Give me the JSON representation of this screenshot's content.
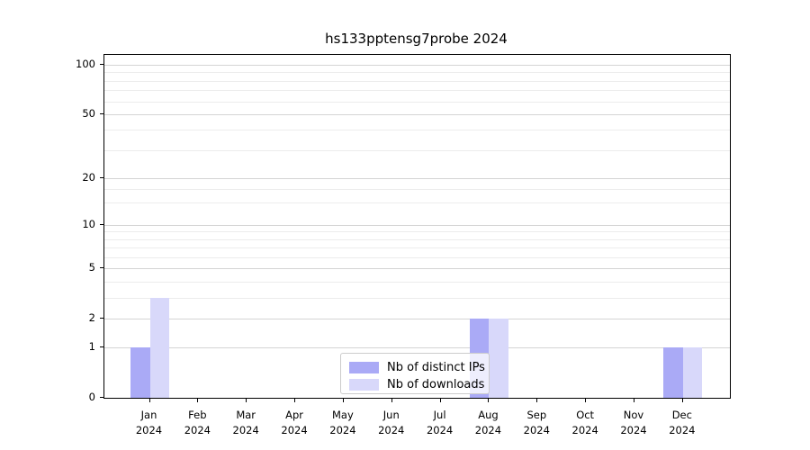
{
  "chart_data": {
    "type": "bar",
    "title": "hs133pptensg7probe 2024",
    "x_categories": [
      "Jan 2024",
      "Feb 2024",
      "Mar 2024",
      "Apr 2024",
      "May 2024",
      "Jun 2024",
      "Jul 2024",
      "Aug 2024",
      "Sep 2024",
      "Oct 2024",
      "Nov 2024",
      "Dec 2024"
    ],
    "series": [
      {
        "name": "Nb of distinct IPs",
        "color": "#aaaaf6",
        "values": [
          1,
          0,
          0,
          0,
          0,
          0,
          0,
          2,
          0,
          0,
          0,
          1
        ]
      },
      {
        "name": "Nb of downloads",
        "color": "#d8d8fa",
        "values": [
          3,
          0,
          0,
          0,
          0,
          0,
          0,
          2,
          0,
          0,
          0,
          1
        ]
      }
    ],
    "y_axis": {
      "scale": "log10(1+y)",
      "tick_values": [
        0,
        1,
        2,
        5,
        10,
        20,
        50,
        100
      ],
      "minor_grid_values": [
        3,
        4,
        6,
        7,
        8,
        9,
        14,
        17,
        30,
        40,
        60,
        70,
        80,
        90
      ],
      "range": [
        0,
        115
      ]
    },
    "grid": "horizontal",
    "legend": {
      "position": "bottom-center",
      "entries": [
        "Nb of distinct IPs",
        "Nb of downloads"
      ]
    },
    "colors": {
      "major_grid": "#d4d4d4",
      "minor_grid": "#ececec",
      "axis": "#000000",
      "legend_border": "#cccccc",
      "text": "#000000"
    }
  }
}
